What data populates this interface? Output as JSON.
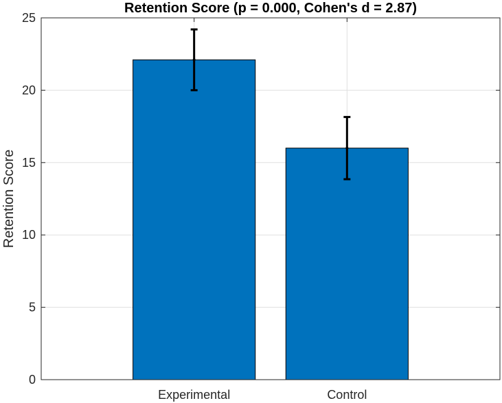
{
  "chart_data": {
    "type": "bar",
    "title": "Retention Score (p = 0.000, Cohen's d = 2.87)",
    "xlabel": "",
    "ylabel": "Retention Score",
    "categories": [
      "Experimental",
      "Control"
    ],
    "values": [
      22.1,
      16.0
    ],
    "error": [
      2.1,
      2.15
    ],
    "ylim": [
      0,
      25
    ],
    "yticks": [
      0,
      5,
      10,
      15,
      20,
      25
    ],
    "xlim": [
      0,
      3
    ],
    "grid": true,
    "bar_color": "#0072BD"
  }
}
